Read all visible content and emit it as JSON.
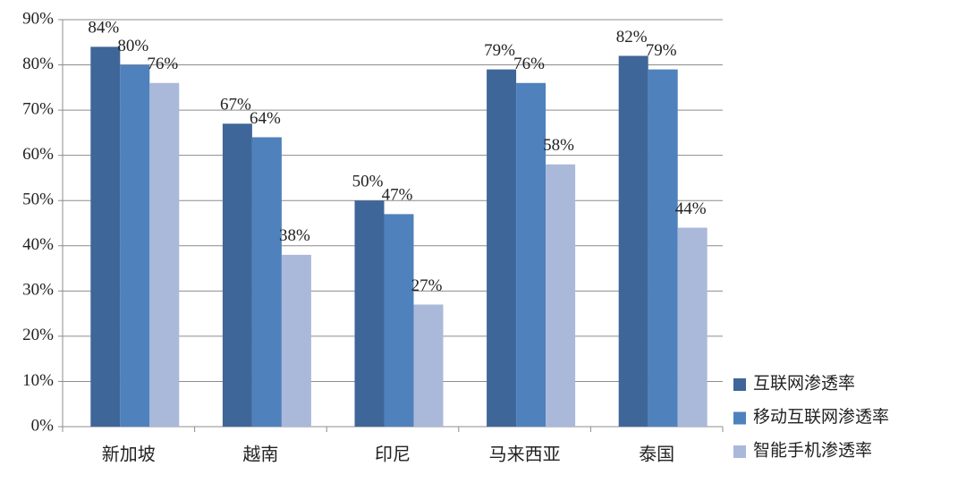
{
  "chart_data": {
    "type": "bar",
    "categories": [
      "新加坡",
      "越南",
      "印尼",
      "马来西亚",
      "泰国"
    ],
    "series": [
      {
        "name": "互联网渗透率",
        "color": "#3f6699",
        "values": [
          84,
          67,
          50,
          79,
          82
        ],
        "value_labels": [
          "84%",
          "67%",
          "50%",
          "79%",
          "82%"
        ]
      },
      {
        "name": "移动互联网渗透率",
        "color": "#4f81bd",
        "values": [
          80,
          64,
          47,
          76,
          79
        ],
        "value_labels": [
          "80%",
          "64%",
          "47%",
          "76%",
          "79%"
        ]
      },
      {
        "name": "智能手机渗透率",
        "color": "#aab9d9",
        "values": [
          76,
          38,
          27,
          58,
          44
        ],
        "value_labels": [
          "76%",
          "38%",
          "27%",
          "58%",
          "44%"
        ]
      }
    ],
    "ylim": [
      0,
      90
    ],
    "yticks": [
      {
        "value": 0,
        "label": "0%"
      },
      {
        "value": 10,
        "label": "10%"
      },
      {
        "value": 20,
        "label": "20%"
      },
      {
        "value": 30,
        "label": "30%"
      },
      {
        "value": 40,
        "label": "40%"
      },
      {
        "value": 50,
        "label": "50%"
      },
      {
        "value": 60,
        "label": "60%"
      },
      {
        "value": 70,
        "label": "70%"
      },
      {
        "value": 80,
        "label": "80%"
      },
      {
        "value": 90,
        "label": "90%"
      }
    ],
    "grid": true,
    "legend": "right"
  }
}
